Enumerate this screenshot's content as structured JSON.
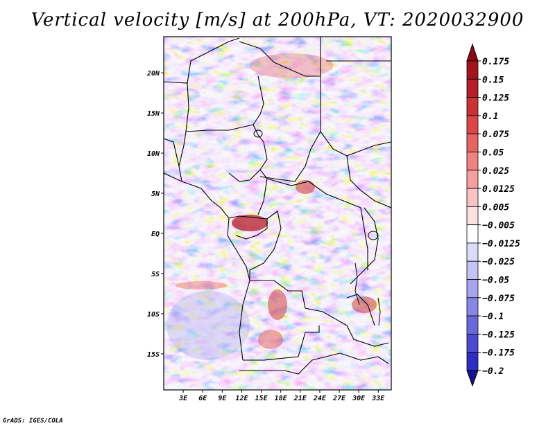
{
  "title": "Vertical velocity [m/s] at 200hPa, VT: 2020032900",
  "credit": "GrADS: IGES/COLA",
  "map": {
    "lat_min": -19.5,
    "lat_max": 24.5,
    "lon_min": 0,
    "lon_max": 35,
    "lat_ticks": [
      {
        "value": 20,
        "label": "20N"
      },
      {
        "value": 15,
        "label": "15N"
      },
      {
        "value": 10,
        "label": "10N"
      },
      {
        "value": 5,
        "label": "5N"
      },
      {
        "value": 0,
        "label": "EQ"
      },
      {
        "value": -5,
        "label": "5S"
      },
      {
        "value": -10,
        "label": "10S"
      },
      {
        "value": -15,
        "label": "15S"
      }
    ],
    "lon_ticks": [
      {
        "value": 3,
        "label": "3E"
      },
      {
        "value": 6,
        "label": "6E"
      },
      {
        "value": 9,
        "label": "9E"
      },
      {
        "value": 12,
        "label": "12E"
      },
      {
        "value": 15,
        "label": "15E"
      },
      {
        "value": 18,
        "label": "18E"
      },
      {
        "value": 21,
        "label": "21E"
      },
      {
        "value": 24,
        "label": "24E"
      },
      {
        "value": 27,
        "label": "27E"
      },
      {
        "value": 30,
        "label": "30E"
      },
      {
        "value": 33,
        "label": "33E"
      }
    ]
  },
  "colorbar": {
    "levels": [
      {
        "label": "0.175",
        "color": "#a0141e"
      },
      {
        "label": "0.15",
        "color": "#b41e28"
      },
      {
        "label": "0.125",
        "color": "#c83232"
      },
      {
        "label": "0.1",
        "color": "#dc4646"
      },
      {
        "label": "0.075",
        "color": "#e66464"
      },
      {
        "label": "0.05",
        "color": "#f08282"
      },
      {
        "label": "0.025",
        "color": "#f5a0a0"
      },
      {
        "label": "0.0125",
        "color": "#fac3c3"
      },
      {
        "label": "0.005",
        "color": "#fde1e1"
      },
      {
        "label": "−0.005",
        "color": "#ffffff"
      },
      {
        "label": "−0.0125",
        "color": "#dcdcfa"
      },
      {
        "label": "−0.025",
        "color": "#c3c3f5"
      },
      {
        "label": "−0.05",
        "color": "#a5a5ef"
      },
      {
        "label": "−0.075",
        "color": "#8787e6"
      },
      {
        "label": "−0.1",
        "color": "#6969dc"
      },
      {
        "label": "−0.125",
        "color": "#4b4bd2"
      },
      {
        "label": "−0.175",
        "color": "#2d2dc3"
      },
      {
        "label": "−0.2",
        "color": "#1e1eaa"
      }
    ],
    "max_color": "#8c0a14",
    "min_color": "#14148c"
  }
}
